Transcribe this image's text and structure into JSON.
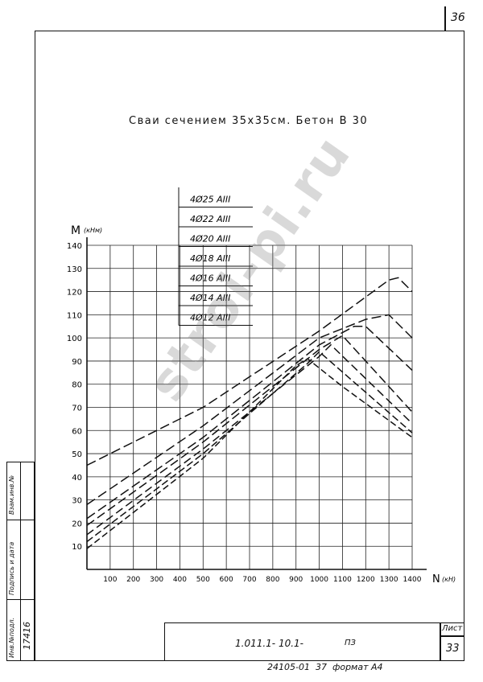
{
  "sheet": {
    "corner_number": "36",
    "heading": "Сваи сечением 35х35см. Бетон В 30",
    "watermark": "stroi-pi.ru",
    "bottom_note": "24105-01  37  формат А4"
  },
  "title_block": {
    "code": "1.011.1- 10.1-",
    "section": "ПЗ",
    "sheet_label": "Лист",
    "sheet_number": "33"
  },
  "side_stamp": {
    "inv_podl": "Инв.№подл.",
    "podpis_data": "Подпись и дата",
    "vzam_inv": "Взам.инв.№",
    "inv_number": "17416"
  },
  "chart_data": {
    "type": "line",
    "ylabel": "M",
    "yunit": "(кНм)",
    "xlabel": "N",
    "xunit": "(кН)",
    "xlim": [
      0,
      1400
    ],
    "ylim": [
      0,
      140
    ],
    "x_ticks": [
      100,
      200,
      300,
      400,
      500,
      600,
      700,
      800,
      900,
      1000,
      1100,
      1200,
      1300,
      1400
    ],
    "x_tick_labels": [
      "100",
      "200",
      "300",
      "400",
      "500",
      "600",
      "700",
      "800",
      "900",
      "1000",
      "1100",
      "1200",
      "1300",
      "1400"
    ],
    "y_ticks": [
      10,
      20,
      30,
      40,
      50,
      60,
      70,
      80,
      90,
      100,
      110,
      120,
      130,
      140
    ],
    "y_tick_labels": [
      "10",
      "20",
      "30",
      "40",
      "50",
      "60",
      "70",
      "80",
      "90",
      "100",
      "110",
      "120",
      "130",
      "140"
    ],
    "grid": true,
    "legend_position": "top-left",
    "series": [
      {
        "name": "4Ø25 AIII",
        "x": [
          0,
          500,
          1000,
          1300,
          1340,
          1400
        ],
        "y": [
          45,
          70,
          103,
          125,
          126,
          120
        ]
      },
      {
        "name": "4Ø22 AIII",
        "x": [
          0,
          500,
          1000,
          1200,
          1300,
          1400
        ],
        "y": [
          28,
          62,
          100,
          108,
          110,
          100
        ]
      },
      {
        "name": "4Ø20 AIII",
        "x": [
          0,
          500,
          1000,
          1150,
          1200,
          1400
        ],
        "y": [
          22,
          57,
          97,
          105,
          105,
          86
        ]
      },
      {
        "name": "4Ø18 AIII",
        "x": [
          0,
          500,
          1000,
          1100,
          1400
        ],
        "y": [
          19,
          55,
          95,
          101,
          68
        ]
      },
      {
        "name": "4Ø16 AIII",
        "x": [
          0,
          500,
          1000,
          1050,
          1400
        ],
        "y": [
          15,
          52,
          92,
          97,
          63
        ]
      },
      {
        "name": "4Ø14 AIII",
        "x": [
          0,
          500,
          950,
          1000,
          1400
        ],
        "y": [
          12,
          50,
          89,
          94,
          59
        ]
      },
      {
        "name": "4Ø12 AIII",
        "x": [
          0,
          500,
          900,
          950,
          1100,
          1400
        ],
        "y": [
          9,
          48,
          88,
          91,
          79,
          57
        ]
      }
    ]
  }
}
